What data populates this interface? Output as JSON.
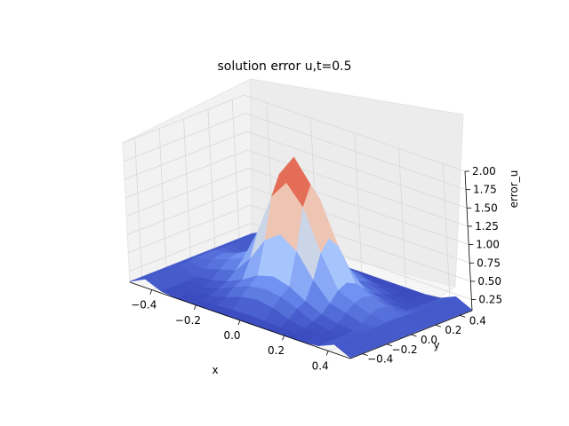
{
  "chart_data": {
    "type": "surface3d",
    "title": "solution error u,t=0.5",
    "xlabel": "x",
    "ylabel": "y",
    "zlabel": "error_u",
    "xlim": [
      -0.5,
      0.5
    ],
    "ylim": [
      -0.5,
      0.5
    ],
    "zlim": [
      0.1,
      2.0
    ],
    "x_ticks": [
      "−0.4",
      "−0.2",
      "0.0",
      "0.2",
      "0.4"
    ],
    "y_ticks": [
      "−0.4",
      "−0.2",
      "0.0",
      "0.2",
      "0.4"
    ],
    "z_ticks": [
      "0.25",
      "0.50",
      "0.75",
      "1.00",
      "1.25",
      "1.50",
      "1.75",
      "2.00"
    ],
    "colormap": "coolwarm",
    "colormap_stops": [
      "#3b4cc0",
      "#6f92f3",
      "#aac7fd",
      "#dddddd",
      "#f7b89c",
      "#e7745b",
      "#b40426"
    ],
    "grid": true,
    "surface": {
      "grid_size": 15,
      "peak": 2.0,
      "base": 0.1,
      "description_of_shape": "central peak at (0,0)"
    }
  }
}
